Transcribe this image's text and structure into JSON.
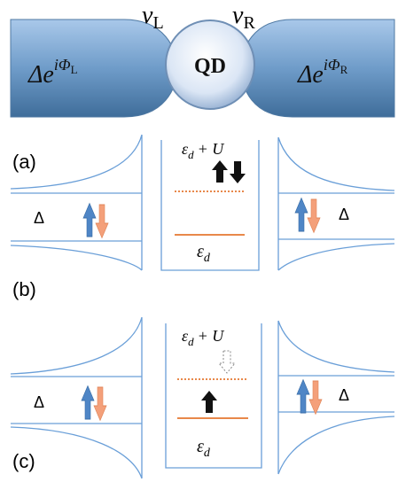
{
  "top": {
    "couplings": [
      {
        "symbol": "v",
        "sub": "L"
      },
      {
        "symbol": "v",
        "sub": "R"
      }
    ],
    "dot": "QD",
    "leads": [
      {
        "base": "Δe",
        "exp": "iΦ",
        "sub": "L"
      },
      {
        "base": "Δe",
        "exp": "iΦ",
        "sub": "R"
      }
    ]
  },
  "labels": [
    "(a)",
    "(b)",
    "(c)"
  ],
  "panels": [
    {
      "upper": {
        "symbol": "ε",
        "sub": "d",
        "suffix": "+ U"
      },
      "lower": {
        "symbol": "ε",
        "sub": "d"
      },
      "gap_left": "Δ",
      "gap_right": "Δ"
    },
    {
      "upper": {
        "symbol": "ε",
        "sub": "d",
        "suffix": "+ U"
      },
      "lower": {
        "symbol": "ε",
        "sub": "d"
      },
      "gap_left": "Δ",
      "gap_right": "Δ"
    }
  ]
}
